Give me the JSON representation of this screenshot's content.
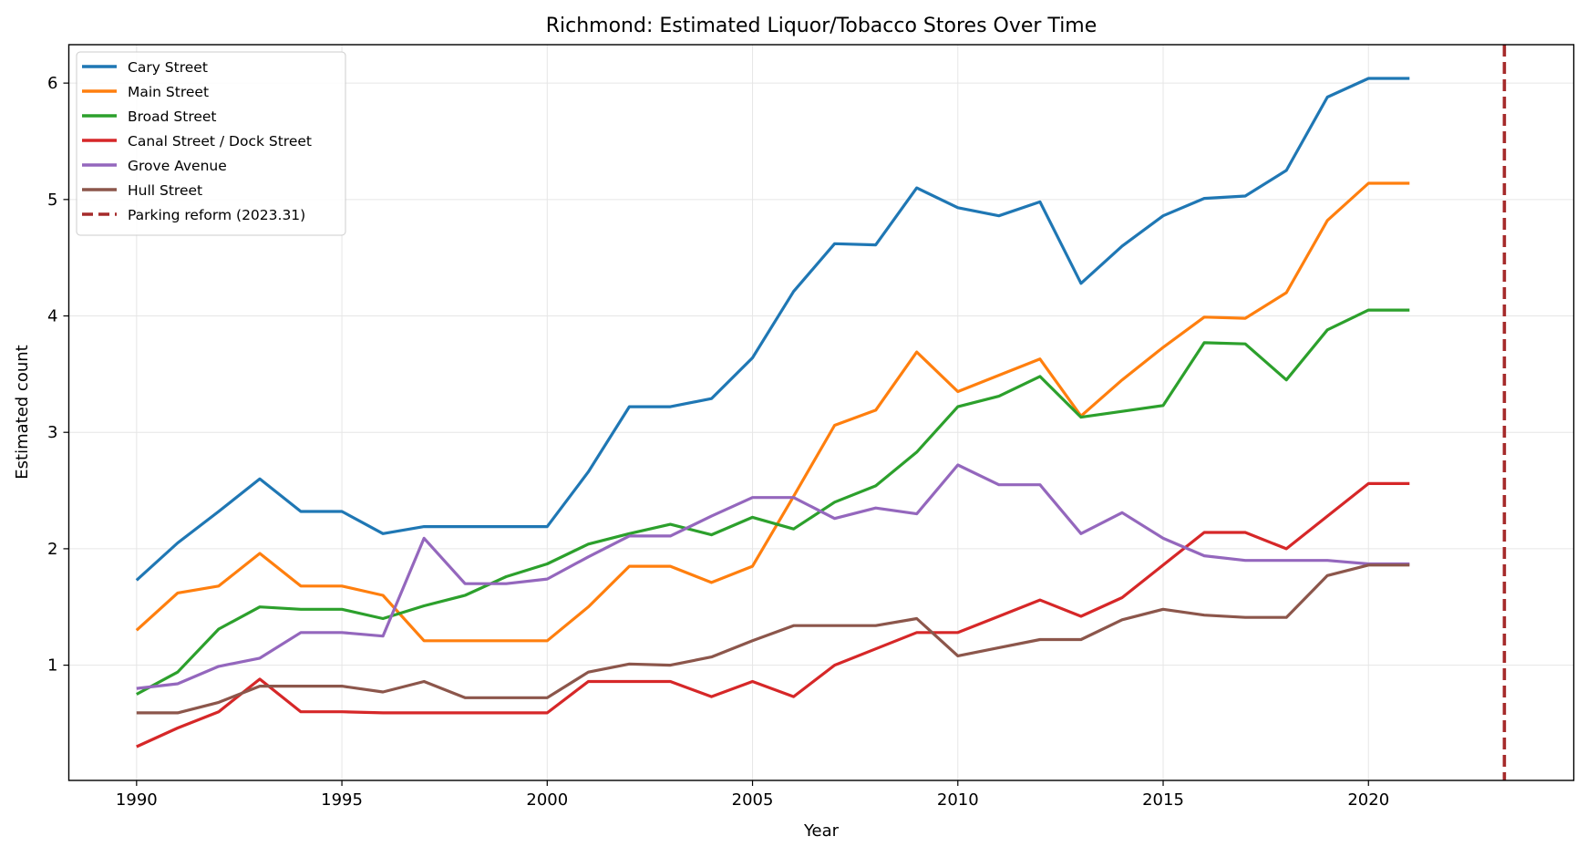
{
  "chart_data": {
    "type": "line",
    "title": "Richmond: Estimated Liquor/Tobacco Stores Over Time",
    "xlabel": "Year",
    "ylabel": "Estimated count",
    "xlim": [
      1988.35,
      2025.0
    ],
    "ylim": [
      0.01,
      6.33
    ],
    "xticks": [
      1990,
      1995,
      2000,
      2005,
      2010,
      2015,
      2020
    ],
    "yticks": [
      1,
      2,
      3,
      4,
      5,
      6
    ],
    "grid": true,
    "legend_position": "top-left",
    "x": [
      1990,
      1991,
      1992,
      1993,
      1994,
      1995,
      1996,
      1997,
      1998,
      1999,
      2000,
      2001,
      2002,
      2003,
      2004,
      2005,
      2006,
      2007,
      2008,
      2009,
      2010,
      2011,
      2012,
      2013,
      2014,
      2015,
      2016,
      2017,
      2018,
      2019,
      2020,
      2021
    ],
    "series": [
      {
        "name": "Cary Street",
        "color": "#1f77b4",
        "values": [
          1.73,
          2.05,
          2.32,
          2.6,
          2.32,
          2.32,
          2.13,
          2.19,
          2.19,
          2.19,
          2.19,
          2.66,
          3.22,
          3.22,
          3.29,
          3.64,
          4.21,
          4.62,
          4.61,
          5.1,
          4.93,
          4.86,
          4.98,
          4.28,
          4.6,
          4.86,
          5.01,
          5.03,
          5.25,
          5.88,
          6.04,
          6.04
        ]
      },
      {
        "name": "Main Street",
        "color": "#ff7f0e",
        "values": [
          1.3,
          1.62,
          1.68,
          1.96,
          1.68,
          1.68,
          1.6,
          1.21,
          1.21,
          1.21,
          1.21,
          1.5,
          1.85,
          1.85,
          1.71,
          1.85,
          2.45,
          3.06,
          3.19,
          3.69,
          3.35,
          3.49,
          3.63,
          3.14,
          3.45,
          3.73,
          3.99,
          3.98,
          4.2,
          4.82,
          5.14,
          5.14
        ]
      },
      {
        "name": "Broad Street",
        "color": "#2ca02c",
        "values": [
          0.75,
          0.94,
          1.31,
          1.5,
          1.48,
          1.48,
          1.4,
          1.51,
          1.6,
          1.76,
          1.87,
          2.04,
          2.13,
          2.21,
          2.12,
          2.27,
          2.17,
          2.4,
          2.54,
          2.83,
          3.22,
          3.31,
          3.48,
          3.13,
          3.18,
          3.23,
          3.77,
          3.76,
          3.45,
          3.88,
          4.05,
          4.05
        ]
      },
      {
        "name": "Canal Street / Dock Street",
        "color": "#d62728",
        "values": [
          0.3,
          0.46,
          0.6,
          0.88,
          0.6,
          0.6,
          0.59,
          0.59,
          0.59,
          0.59,
          0.59,
          0.86,
          0.86,
          0.86,
          0.73,
          0.86,
          0.73,
          1.0,
          1.14,
          1.28,
          1.28,
          1.42,
          1.56,
          1.42,
          1.58,
          1.86,
          2.14,
          2.14,
          2.0,
          2.28,
          2.56,
          2.56
        ]
      },
      {
        "name": "Grove Avenue",
        "color": "#9467bd",
        "values": [
          0.8,
          0.84,
          0.99,
          1.06,
          1.28,
          1.28,
          1.25,
          2.09,
          1.7,
          1.7,
          1.74,
          1.93,
          2.11,
          2.11,
          2.28,
          2.44,
          2.44,
          2.26,
          2.35,
          2.3,
          2.72,
          2.55,
          2.55,
          2.13,
          2.31,
          2.09,
          1.94,
          1.9,
          1.9,
          1.9,
          1.87,
          1.87
        ]
      },
      {
        "name": "Hull Street",
        "color": "#8c564b",
        "values": [
          0.59,
          0.59,
          0.68,
          0.82,
          0.82,
          0.82,
          0.77,
          0.86,
          0.72,
          0.72,
          0.72,
          0.94,
          1.01,
          1.0,
          1.07,
          1.21,
          1.34,
          1.34,
          1.34,
          1.4,
          1.08,
          1.15,
          1.22,
          1.22,
          1.39,
          1.48,
          1.43,
          1.41,
          1.41,
          1.77,
          1.86,
          1.86
        ]
      }
    ],
    "annotations": [
      {
        "type": "vline",
        "x": 2023.31,
        "label": "Parking reform (2023.31)",
        "color": "#a52a2a",
        "style": "dashed"
      }
    ]
  }
}
